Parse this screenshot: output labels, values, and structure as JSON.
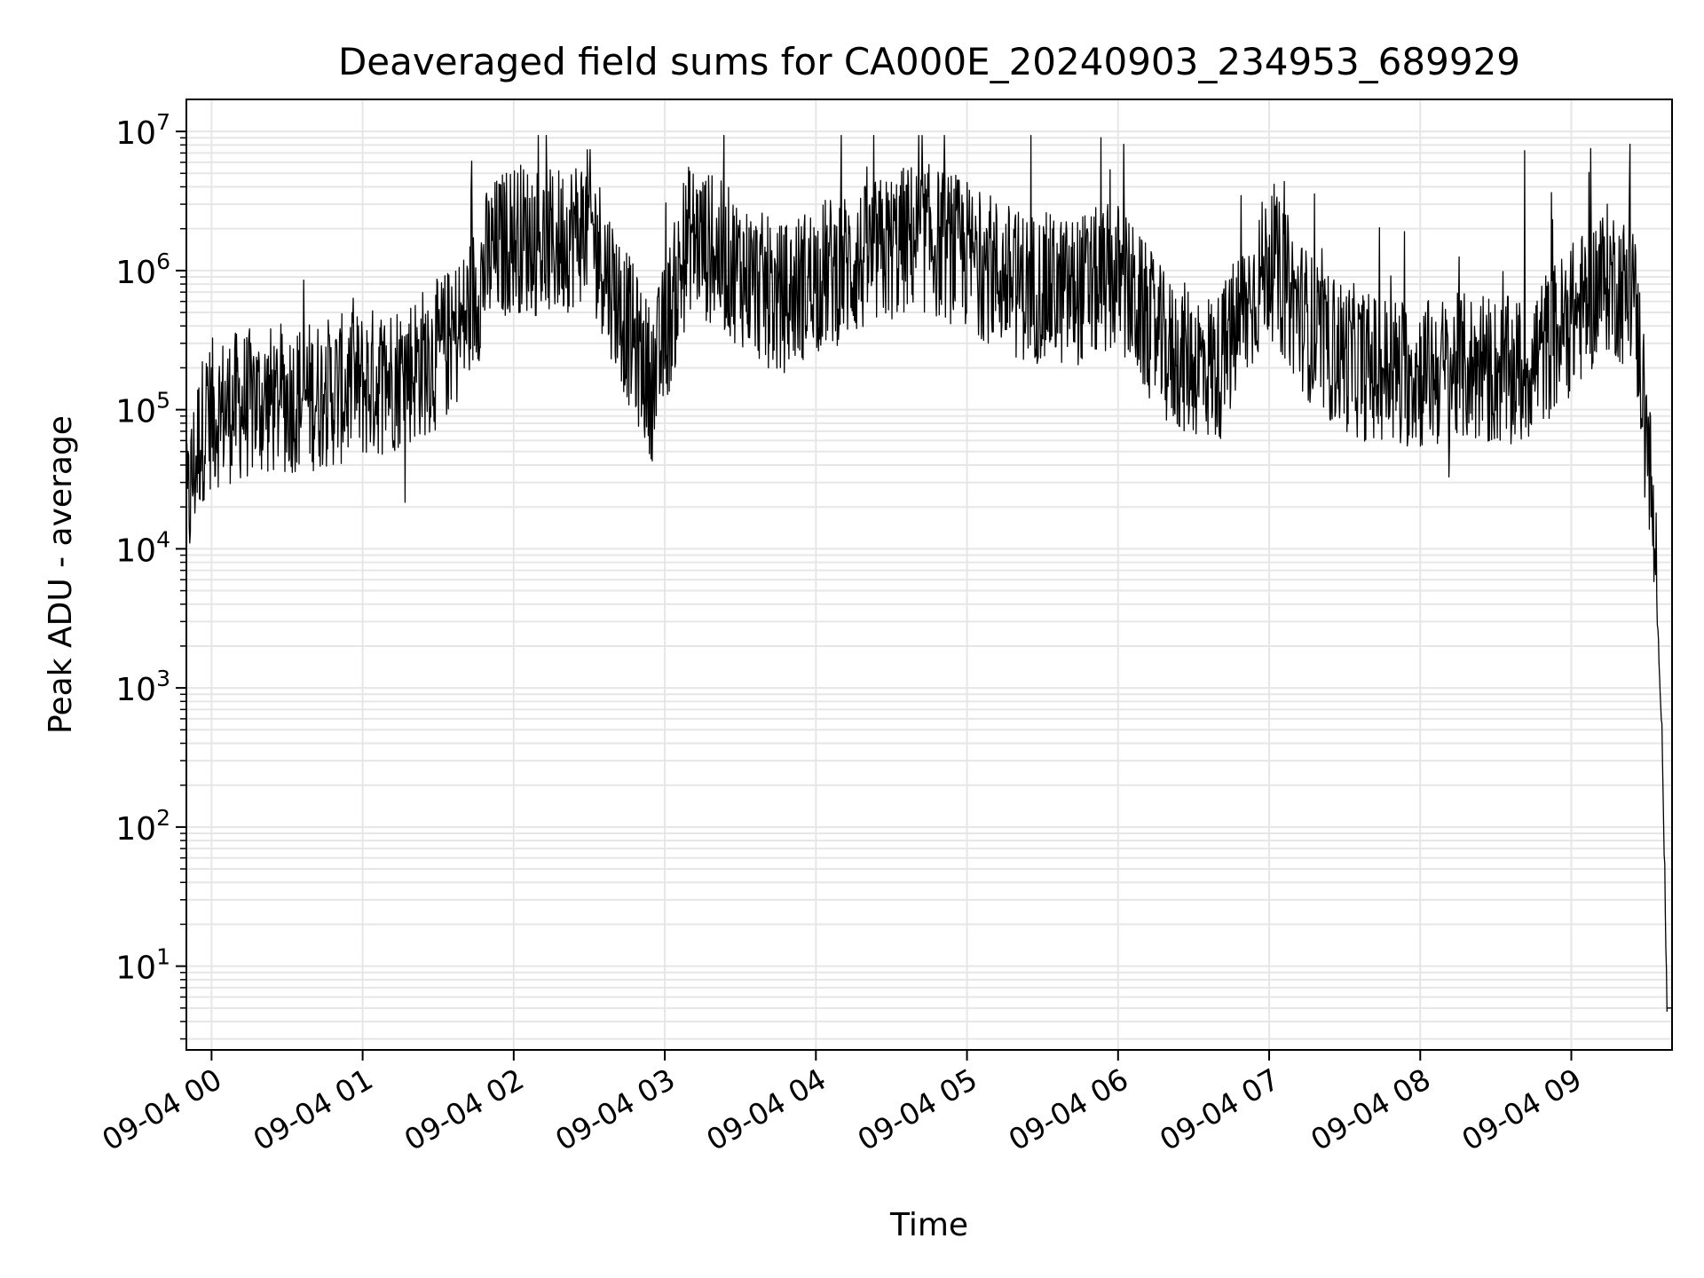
{
  "chart_data": {
    "type": "line",
    "title": "Deaveraged field sums for CA000E_20240903_234953_689929",
    "xlabel": "Time",
    "ylabel": "Peak ADU - average",
    "y_scale": "log",
    "ylim": [
      2.5,
      17000000
    ],
    "xlim": [
      "2024-09-03 23:50:00",
      "2024-09-04 09:40:00"
    ],
    "x_ticks": [
      {
        "value": "2024-09-04 00:00",
        "label": "09-04 00"
      },
      {
        "value": "2024-09-04 01:00",
        "label": "09-04 01"
      },
      {
        "value": "2024-09-04 02:00",
        "label": "09-04 02"
      },
      {
        "value": "2024-09-04 03:00",
        "label": "09-04 03"
      },
      {
        "value": "2024-09-04 04:00",
        "label": "09-04 04"
      },
      {
        "value": "2024-09-04 05:00",
        "label": "09-04 05"
      },
      {
        "value": "2024-09-04 06:00",
        "label": "09-04 06"
      },
      {
        "value": "2024-09-04 07:00",
        "label": "09-04 07"
      },
      {
        "value": "2024-09-04 08:00",
        "label": "09-04 08"
      },
      {
        "value": "2024-09-04 09:00",
        "label": "09-04 09"
      }
    ],
    "y_ticks": [
      {
        "value": 10,
        "base": "10",
        "exp": "1"
      },
      {
        "value": 100,
        "base": "10",
        "exp": "2"
      },
      {
        "value": 1000,
        "base": "10",
        "exp": "3"
      },
      {
        "value": 10000,
        "base": "10",
        "exp": "4"
      },
      {
        "value": 100000,
        "base": "10",
        "exp": "5"
      },
      {
        "value": 1000000,
        "base": "10",
        "exp": "6"
      },
      {
        "value": 10000000,
        "base": "10",
        "exp": "7"
      }
    ],
    "grid": true,
    "line_color": "#000000",
    "grid_color": "#e6e6e6",
    "series": [
      {
        "x": [
          "2024-09-03 23:50",
          "2024-09-03 23:52",
          "2024-09-03 23:55",
          "2024-09-03 23:58",
          "2024-09-04 00:05",
          "2024-09-04 00:15",
          "2024-09-04 00:30",
          "2024-09-04 00:45",
          "2024-09-04 01:00",
          "2024-09-04 01:15",
          "2024-09-04 01:30",
          "2024-09-04 01:40",
          "2024-09-04 01:50",
          "2024-09-04 02:00",
          "2024-09-04 02:15",
          "2024-09-04 02:30",
          "2024-09-04 02:45",
          "2024-09-04 02:55",
          "2024-09-04 03:10",
          "2024-09-04 03:30",
          "2024-09-04 03:45",
          "2024-09-04 04:00",
          "2024-09-04 04:20",
          "2024-09-04 04:40",
          "2024-09-04 05:00",
          "2024-09-04 05:20",
          "2024-09-04 05:40",
          "2024-09-04 06:00",
          "2024-09-04 06:20",
          "2024-09-04 06:40",
          "2024-09-04 07:00",
          "2024-09-04 07:20",
          "2024-09-04 07:40",
          "2024-09-04 08:00",
          "2024-09-04 08:20",
          "2024-09-04 08:40",
          "2024-09-04 09:00",
          "2024-09-04 09:15",
          "2024-09-04 09:25",
          "2024-09-04 09:30",
          "2024-09-04 09:33",
          "2024-09-04 09:36",
          "2024-09-04 09:38"
        ],
        "values": [
          15000,
          30000,
          60000,
          90000,
          100000,
          110000,
          120000,
          130000,
          150000,
          180000,
          250000,
          400000,
          1200000,
          1800000,
          1500000,
          2200000,
          400000,
          150000,
          1800000,
          1000000,
          600000,
          900000,
          1200000,
          1800000,
          1300000,
          800000,
          700000,
          900000,
          250000,
          200000,
          1200000,
          300000,
          200000,
          180000,
          200000,
          180000,
          450000,
          900000,
          600000,
          80000,
          10000,
          500,
          5
        ]
      }
    ]
  }
}
